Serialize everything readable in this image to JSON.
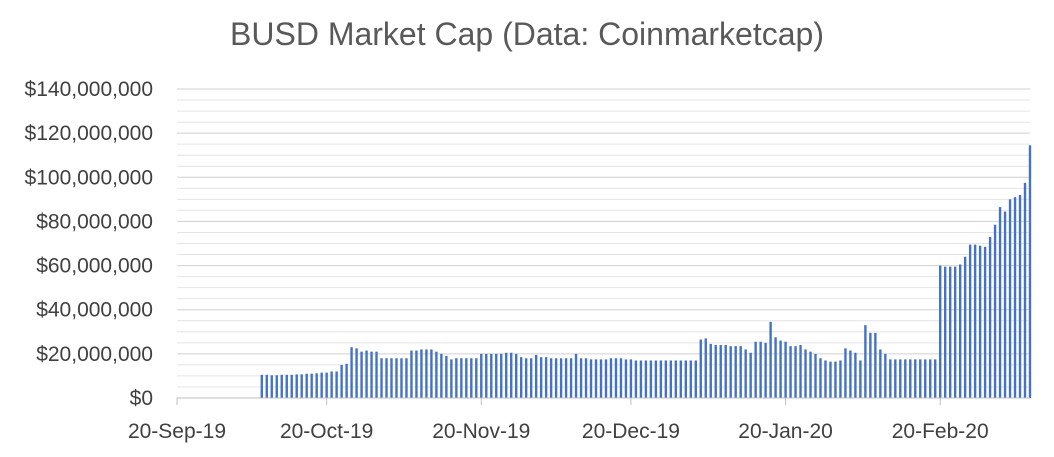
{
  "chart_data": {
    "type": "bar",
    "title": "BUSD Market Cap (Data: Coinmarketcap)",
    "xlabel": "",
    "ylabel": "",
    "ylim": [
      0,
      140000000
    ],
    "grid": true,
    "legend": "none",
    "y_tick_labels": [
      "$0",
      "$20,000,000",
      "$40,000,000",
      "$60,000,000",
      "$80,000,000",
      "$100,000,000",
      "$120,000,000",
      "$140,000,000"
    ],
    "y_tick_values": [
      0,
      20000000,
      40000000,
      60000000,
      80000000,
      100000000,
      120000000,
      140000000
    ],
    "x_tick_labels": [
      "20-Sep-19",
      "20-Oct-19",
      "20-Nov-19",
      "20-Dec-19",
      "20-Jan-20",
      "20-Feb-20"
    ],
    "x_tick_dates": [
      "2019-09-20",
      "2019-10-20",
      "2019-11-20",
      "2019-12-20",
      "2020-01-20",
      "2020-02-20"
    ],
    "x_range": [
      "2019-09-20",
      "2020-03-09"
    ],
    "bar_color": "#4472C4",
    "series": [
      {
        "x": [
          "2019-10-07",
          "2019-10-08",
          "2019-10-09",
          "2019-10-10",
          "2019-10-11",
          "2019-10-12",
          "2019-10-13",
          "2019-10-14",
          "2019-10-15",
          "2019-10-16",
          "2019-10-17",
          "2019-10-18",
          "2019-10-19",
          "2019-10-20",
          "2019-10-21",
          "2019-10-22",
          "2019-10-23",
          "2019-10-24",
          "2019-10-25",
          "2019-10-26",
          "2019-10-27",
          "2019-10-28",
          "2019-10-29",
          "2019-10-30",
          "2019-10-31",
          "2019-11-01",
          "2019-11-02",
          "2019-11-03",
          "2019-11-04",
          "2019-11-05",
          "2019-11-06",
          "2019-11-07",
          "2019-11-08",
          "2019-11-09",
          "2019-11-10",
          "2019-11-11",
          "2019-11-12",
          "2019-11-13",
          "2019-11-14",
          "2019-11-15",
          "2019-11-16",
          "2019-11-17",
          "2019-11-18",
          "2019-11-19",
          "2019-11-20",
          "2019-11-21",
          "2019-11-22",
          "2019-11-23",
          "2019-11-24",
          "2019-11-25",
          "2019-11-26",
          "2019-11-27",
          "2019-11-28",
          "2019-11-29",
          "2019-11-30",
          "2019-12-01",
          "2019-12-02",
          "2019-12-03",
          "2019-12-04",
          "2019-12-05",
          "2019-12-06",
          "2019-12-07",
          "2019-12-08",
          "2019-12-09",
          "2019-12-10",
          "2019-12-11",
          "2019-12-12",
          "2019-12-13",
          "2019-12-14",
          "2019-12-15",
          "2019-12-16",
          "2019-12-17",
          "2019-12-18",
          "2019-12-19",
          "2019-12-20",
          "2019-12-21",
          "2019-12-22",
          "2019-12-23",
          "2019-12-24",
          "2019-12-25",
          "2019-12-26",
          "2019-12-27",
          "2019-12-28",
          "2019-12-29",
          "2019-12-30",
          "2019-12-31",
          "2020-01-01",
          "2020-01-02",
          "2020-01-03",
          "2020-01-04",
          "2020-01-05",
          "2020-01-06",
          "2020-01-07",
          "2020-01-08",
          "2020-01-09",
          "2020-01-10",
          "2020-01-11",
          "2020-01-12",
          "2020-01-13",
          "2020-01-14",
          "2020-01-15",
          "2020-01-16",
          "2020-01-17",
          "2020-01-18",
          "2020-01-19",
          "2020-01-20",
          "2020-01-21",
          "2020-01-22",
          "2020-01-23",
          "2020-01-24",
          "2020-01-25",
          "2020-01-26",
          "2020-01-27",
          "2020-01-28",
          "2020-01-29",
          "2020-01-30",
          "2020-01-31",
          "2020-02-01",
          "2020-02-02",
          "2020-02-03",
          "2020-02-04",
          "2020-02-05",
          "2020-02-06",
          "2020-02-07",
          "2020-02-08",
          "2020-02-09",
          "2020-02-10",
          "2020-02-11",
          "2020-02-12",
          "2020-02-13",
          "2020-02-14",
          "2020-02-15",
          "2020-02-16",
          "2020-02-17",
          "2020-02-18",
          "2020-02-19",
          "2020-02-20",
          "2020-02-21",
          "2020-02-22",
          "2020-02-23",
          "2020-02-24",
          "2020-02-25",
          "2020-02-26",
          "2020-02-27",
          "2020-02-28",
          "2020-02-29",
          "2020-03-01",
          "2020-03-02",
          "2020-03-03",
          "2020-03-04",
          "2020-03-05",
          "2020-03-06",
          "2020-03-07",
          "2020-03-08",
          "2020-03-09"
        ],
        "values": [
          10500000,
          10500000,
          10300000,
          10300000,
          10500000,
          10500000,
          10500000,
          10700000,
          10700000,
          11000000,
          11000000,
          11200000,
          11500000,
          11500000,
          12000000,
          12000000,
          15000000,
          15500000,
          23000000,
          22500000,
          21000000,
          21500000,
          21000000,
          21000000,
          18000000,
          18000000,
          18000000,
          18000000,
          18000000,
          18000000,
          21500000,
          21500000,
          22000000,
          22000000,
          22000000,
          21000000,
          20000000,
          19000000,
          17500000,
          18000000,
          18000000,
          18000000,
          18000000,
          18000000,
          20000000,
          20000000,
          20000000,
          20000000,
          20000000,
          20500000,
          20500000,
          20000000,
          18500000,
          18000000,
          18000000,
          19500000,
          18500000,
          18500000,
          18000000,
          18000000,
          18000000,
          18000000,
          18000000,
          20000000,
          18000000,
          18000000,
          17500000,
          17500000,
          17500000,
          17500000,
          18000000,
          18000000,
          18000000,
          17500000,
          17500000,
          17000000,
          17000000,
          17000000,
          17000000,
          17000000,
          17000000,
          17000000,
          17000000,
          17000000,
          17000000,
          17000000,
          17000000,
          17000000,
          26500000,
          27000000,
          24500000,
          24000000,
          24000000,
          24000000,
          23500000,
          23500000,
          23500000,
          22000000,
          20500000,
          25500000,
          25500000,
          25000000,
          34500000,
          27500000,
          26000000,
          25500000,
          23500000,
          23500000,
          24000000,
          22000000,
          21000000,
          20000000,
          18000000,
          17000000,
          16500000,
          16500000,
          17000000,
          22500000,
          21500000,
          20500000,
          17000000,
          33000000,
          29500000,
          29500000,
          22000000,
          20000000,
          17500000,
          17500000,
          17500000,
          17500000,
          17500000,
          17500000,
          17500000,
          17500000,
          17500000,
          17500000,
          60000000,
          59500000,
          59500000,
          59500000,
          60500000,
          64000000,
          69500000,
          69500000,
          69000000,
          68500000,
          73000000,
          78500000,
          86500000,
          84500000,
          90000000,
          91000000,
          92000000,
          97500000,
          114500000
        ]
      }
    ]
  }
}
